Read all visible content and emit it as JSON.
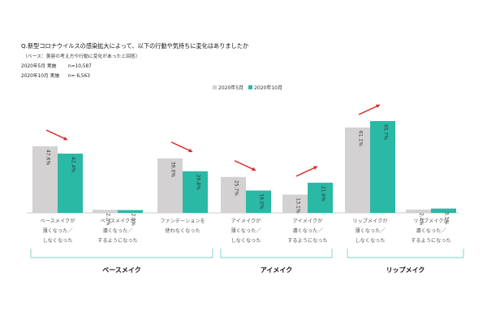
{
  "question": "Q.新型コロナウイルスの感染拡大によって、以下の行動や気持ちに変化はありましたか",
  "base_note": "（ベース：美容の考え方や行動に変化があったと回答）",
  "samples": [
    {
      "label": "2020年5月 実施",
      "n": "n=10,587"
    },
    {
      "label": "2020年10月 実施",
      "n": "n= 6,563"
    }
  ],
  "colors": {
    "may": "#d3d1d2",
    "oct": "#2ab9a5",
    "arrow": "#e02020",
    "bracket": "#7fd3c6"
  },
  "chart_data": {
    "type": "bar",
    "title": "",
    "categories": [
      [
        "ベースメイクが",
        "薄くなった／",
        "しなくなった"
      ],
      [
        "ベースメイクが",
        "濃くなった／",
        "するようになった"
      ],
      [
        "ファンデーションを",
        "使わなくなった"
      ],
      [
        "アイメイクが",
        "薄くなった／",
        "しなくなった"
      ],
      [
        "アイメイクが",
        "濃くなった／",
        "するようになった"
      ],
      [
        "リップメイクが",
        "薄くなった／",
        "しなくなった"
      ],
      [
        "リップメイクが",
        "濃くなった／",
        "するようになった"
      ]
    ],
    "series": [
      {
        "name": "2020年5月",
        "values": [
          47.6,
          2.2,
          39.0,
          25.7,
          13.1,
          61.1,
          2.4
        ],
        "labels": [
          "47.6%",
          "2.2%",
          "39.0%",
          "25.7%",
          "13.1%",
          "61.1%",
          "2.4%"
        ]
      },
      {
        "name": "2020年10月",
        "values": [
          42.4,
          2.0,
          29.8,
          16.0,
          21.6,
          65.7,
          3.1
        ],
        "labels": [
          "42.4%",
          "2.0%",
          "29.8%",
          "16.0%",
          "21.6%",
          "65.7%",
          "3.1%"
        ]
      }
    ],
    "ylim": [
      0,
      70
    ],
    "grid": false,
    "legend": "top-center",
    "trend_arrows": [
      "down",
      "none",
      "down",
      "down",
      "up",
      "up",
      "none"
    ],
    "groups": [
      {
        "label": "ベースメイク",
        "categories": [
          0,
          1,
          2
        ]
      },
      {
        "label": "アイメイク",
        "categories": [
          3,
          4
        ]
      },
      {
        "label": "リップメイク",
        "categories": [
          5,
          6
        ]
      }
    ]
  }
}
